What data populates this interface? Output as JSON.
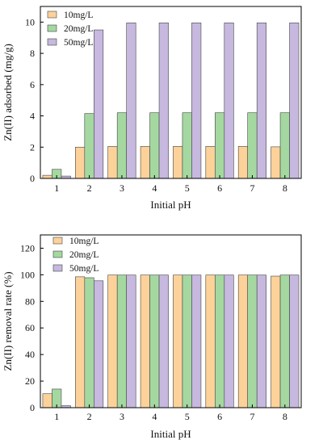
{
  "colors": {
    "10mg/L": "#fcd29a",
    "20mg/L": "#a4d8a0",
    "50mg/L": "#c6b8de",
    "stroke": "#444444",
    "axis": "#000000"
  },
  "chart_data": [
    {
      "type": "bar",
      "xlabel": "Initial pH",
      "ylabel": "Zn(II) adsorbed (mg/g)",
      "categories": [
        "1",
        "2",
        "3",
        "4",
        "5",
        "6",
        "7",
        "8"
      ],
      "ylim": [
        0,
        11
      ],
      "yticks": [
        0,
        2,
        4,
        6,
        8,
        10
      ],
      "grid": false,
      "legend_position": "top-left",
      "series": [
        {
          "name": "10mg/L",
          "values": [
            0.2,
            2.0,
            2.05,
            2.05,
            2.05,
            2.05,
            2.05,
            2.02
          ]
        },
        {
          "name": "20mg/L",
          "values": [
            0.58,
            4.15,
            4.2,
            4.2,
            4.2,
            4.2,
            4.2,
            4.2
          ]
        },
        {
          "name": "50mg/L",
          "values": [
            0.15,
            9.5,
            9.95,
            9.95,
            9.95,
            9.95,
            9.95,
            9.95
          ]
        }
      ]
    },
    {
      "type": "bar",
      "xlabel": "Initial pH",
      "ylabel": "Zn(II) removal rate (%)",
      "categories": [
        "1",
        "2",
        "3",
        "4",
        "5",
        "6",
        "7",
        "8"
      ],
      "ylim": [
        0,
        130
      ],
      "yticks": [
        0,
        20,
        40,
        60,
        80,
        100,
        120
      ],
      "grid": false,
      "legend_position": "top-left",
      "series": [
        {
          "name": "10mg/L",
          "values": [
            10.5,
            98.5,
            99.8,
            99.8,
            99.8,
            99.8,
            99.8,
            99.0
          ]
        },
        {
          "name": "20mg/L",
          "values": [
            14.0,
            97.8,
            99.8,
            99.8,
            99.8,
            99.8,
            99.8,
            99.8
          ]
        },
        {
          "name": "50mg/L",
          "values": [
            1.5,
            95.5,
            99.8,
            99.8,
            99.8,
            99.8,
            99.8,
            99.8
          ]
        }
      ]
    }
  ]
}
